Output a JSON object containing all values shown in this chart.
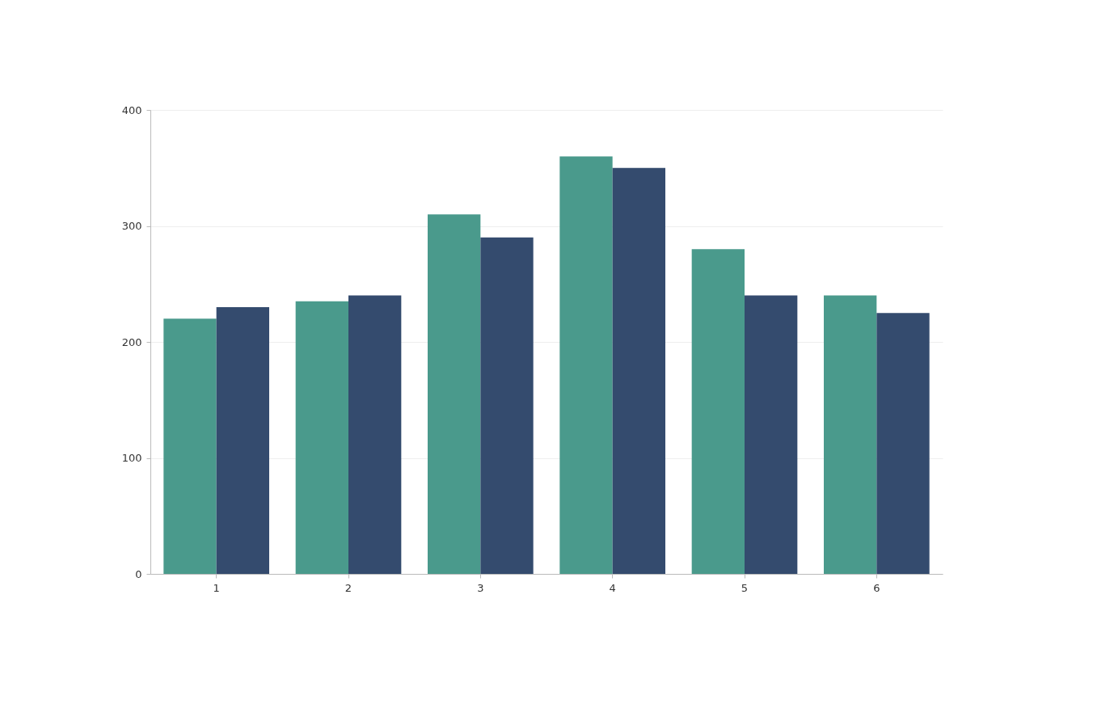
{
  "chart_data": {
    "type": "bar",
    "categories": [
      "1",
      "2",
      "3",
      "4",
      "5",
      "6"
    ],
    "series": [
      {
        "color": "#4a9a8c",
        "values": [
          220,
          235,
          310,
          360,
          280,
          240
        ]
      },
      {
        "color": "#344b6e",
        "values": [
          230,
          240,
          290,
          350,
          240,
          225
        ]
      }
    ],
    "ylim": [
      0,
      400
    ],
    "yticks": [
      0,
      100,
      200,
      300,
      400
    ],
    "grid": "y",
    "legend": false
  }
}
